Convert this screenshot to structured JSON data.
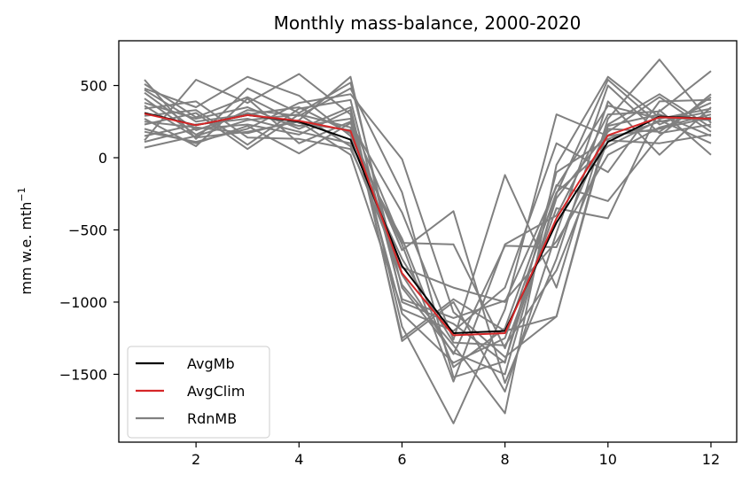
{
  "chart_data": {
    "type": "line",
    "title": "Monthly mass-balance, 2000-2020",
    "xlabel": "",
    "ylabel": "mm w.e. mth",
    "ylabel_sup": "−1",
    "xlim": [
      0.5,
      12.5
    ],
    "ylim": [
      -1970,
      810
    ],
    "xticks": [
      2,
      4,
      6,
      8,
      10,
      12
    ],
    "xtick_labels": [
      "2",
      "4",
      "6",
      "8",
      "10",
      "12"
    ],
    "yticks": [
      500,
      0,
      -500,
      -1000,
      -1500
    ],
    "ytick_labels": [
      "500",
      "0",
      "−500",
      "−1000",
      "−1500"
    ],
    "grid": false,
    "legend_position": "lower-left",
    "x": [
      1,
      2,
      3,
      4,
      5,
      6,
      7,
      8,
      9,
      10,
      11,
      12
    ],
    "series": [
      {
        "name": "AvgMb",
        "color": "#000000",
        "legend": true,
        "values": [
          310,
          225,
          295,
          250,
          125,
          -750,
          -1215,
          -1200,
          -450,
          110,
          285,
          270
        ]
      },
      {
        "name": "AvgClim",
        "color": "#d62728",
        "legend": true,
        "values": [
          305,
          225,
          295,
          255,
          185,
          -800,
          -1230,
          -1215,
          -420,
          155,
          280,
          270
        ]
      },
      {
        "name": "RdnMB",
        "color": "#808080",
        "legend": true,
        "values": [
          540,
          130,
          480,
          310,
          520,
          -900,
          -1350,
          -1500,
          -250,
          540,
          230,
          380
        ]
      },
      {
        "color": "#808080",
        "legend": false,
        "values": [
          480,
          350,
          560,
          430,
          150,
          -600,
          -1550,
          -600,
          -400,
          300,
          320,
          600
        ]
      },
      {
        "color": "#808080",
        "legend": false,
        "values": [
          120,
          540,
          380,
          580,
          300,
          -1250,
          -980,
          -1200,
          -1100,
          200,
          180,
          420
        ]
      },
      {
        "color": "#808080",
        "legend": false,
        "values": [
          250,
          210,
          170,
          260,
          560,
          -1000,
          -1150,
          -1420,
          -100,
          130,
          250,
          320
        ]
      },
      {
        "color": "#808080",
        "legend": false,
        "values": [
          380,
          270,
          350,
          200,
          350,
          -1170,
          -1840,
          -1050,
          300,
          150,
          200,
          280
        ]
      },
      {
        "color": "#808080",
        "legend": false,
        "values": [
          70,
          150,
          260,
          300,
          210,
          -880,
          -1300,
          -1770,
          -50,
          560,
          280,
          260
        ]
      },
      {
        "color": "#808080",
        "legend": false,
        "values": [
          180,
          110,
          200,
          380,
          440,
          -10,
          -1070,
          -1380,
          -1100,
          230,
          440,
          210
        ]
      },
      {
        "color": "#808080",
        "legend": false,
        "values": [
          340,
          390,
          140,
          130,
          60,
          -700,
          -1280,
          -1300,
          -780,
          120,
          100,
          160
        ]
      },
      {
        "color": "#808080",
        "legend": false,
        "values": [
          450,
          190,
          310,
          220,
          270,
          -590,
          -600,
          -1320,
          -350,
          -420,
          330,
          20
        ]
      },
      {
        "color": "#808080",
        "legend": false,
        "values": [
          200,
          100,
          220,
          30,
          240,
          -380,
          -1260,
          -120,
          -900,
          270,
          680,
          240
        ]
      },
      {
        "color": "#808080",
        "legend": false,
        "values": [
          510,
          280,
          420,
          240,
          190,
          -640,
          -370,
          -1560,
          -700,
          390,
          20,
          350
        ]
      },
      {
        "color": "#808080",
        "legend": false,
        "values": [
          150,
          230,
          270,
          180,
          100,
          -560,
          -1450,
          -1180,
          -190,
          -300,
          150,
          440
        ]
      },
      {
        "color": "#808080",
        "legend": false,
        "values": [
          290,
          330,
          90,
          340,
          400,
          -980,
          -1110,
          -990,
          -580,
          20,
          210,
          300
        ]
      },
      {
        "color": "#808080",
        "legend": false,
        "values": [
          410,
          160,
          330,
          290,
          480,
          -240,
          -1520,
          -1410,
          -280,
          180,
          420,
          180
        ]
      },
      {
        "color": "#808080",
        "legend": false,
        "values": [
          110,
          200,
          230,
          160,
          330,
          -1270,
          -1000,
          -1620,
          -520,
          500,
          170,
          230
        ]
      },
      {
        "color": "#808080",
        "legend": false,
        "values": [
          230,
          310,
          60,
          300,
          80,
          -810,
          -1360,
          -610,
          -620,
          220,
          300,
          150
        ]
      },
      {
        "color": "#808080",
        "legend": false,
        "values": [
          360,
          140,
          180,
          250,
          20,
          -1050,
          -1200,
          -900,
          100,
          -100,
          390,
          400
        ]
      },
      {
        "color": "#808080",
        "legend": false,
        "values": [
          270,
          80,
          410,
          100,
          250,
          -1080,
          -1420,
          -1250,
          -240,
          80,
          260,
          100
        ]
      },
      {
        "color": "#808080",
        "legend": false,
        "values": [
          470,
          250,
          300,
          350,
          170,
          -760,
          -900,
          -1000,
          -200,
          360,
          270,
          340
        ]
      }
    ]
  }
}
